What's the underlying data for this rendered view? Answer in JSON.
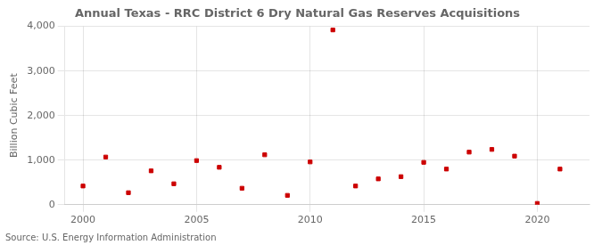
{
  "chart_data": {
    "type": "scatter",
    "title": "Annual Texas - RRC District 6 Dry Natural Gas Reserves Acquisitions",
    "ylabel": "Billion Cubic Feet",
    "annotations": [
      "Source: U.S. Energy Information Administration"
    ],
    "x": [
      2000,
      2001,
      2002,
      2003,
      2004,
      2005,
      2006,
      2007,
      2008,
      2009,
      2010,
      2011,
      2012,
      2013,
      2014,
      2015,
      2016,
      2017,
      2018,
      2019,
      2020,
      2021
    ],
    "values": [
      420,
      1070,
      270,
      760,
      470,
      990,
      840,
      370,
      1120,
      210,
      960,
      3920,
      420,
      580,
      630,
      950,
      800,
      1180,
      1240,
      1090,
      30,
      800
    ],
    "color": "#cc0000",
    "marker": "square",
    "xlim": [
      1999.2,
      2022.3
    ],
    "xticks": [
      2000,
      2005,
      2010,
      2015,
      2020
    ],
    "ylim": [
      0,
      4000
    ],
    "yticks": [
      0,
      {
        "value": 1000,
        "label": "1,000"
      },
      {
        "value": 2000,
        "label": "2,000"
      },
      {
        "value": 3000,
        "label": "3,000"
      },
      {
        "value": 4000,
        "label": "4,000"
      }
    ],
    "grid": true
  }
}
